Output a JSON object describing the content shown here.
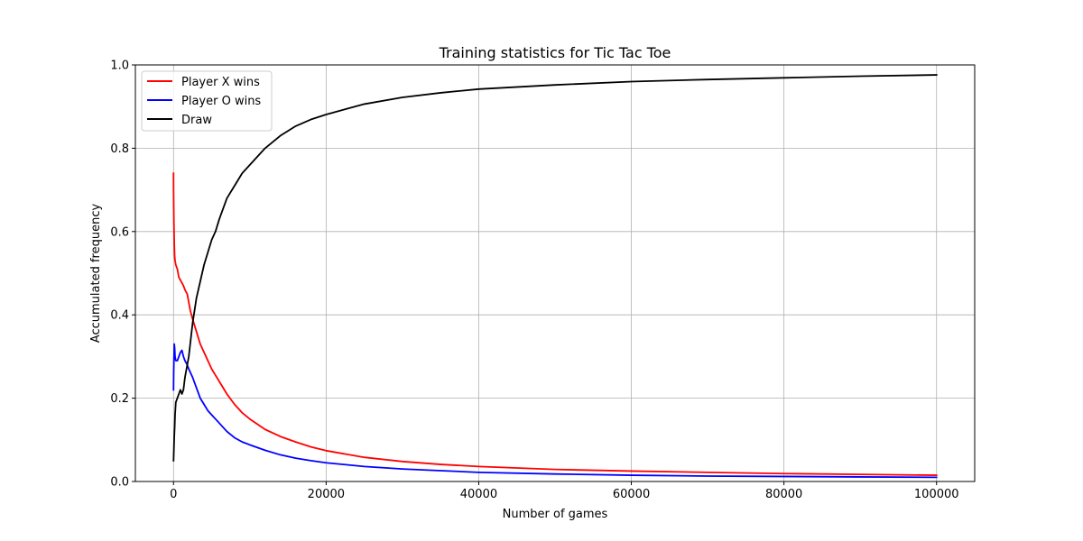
{
  "chart_data": {
    "type": "line",
    "title": "Training statistics for Tic Tac Toe",
    "xlabel": "Number of games",
    "ylabel": "Accumulated frequency",
    "xlim": [
      -5000,
      105000
    ],
    "ylim": [
      0,
      1
    ],
    "xticks": [
      0,
      20000,
      40000,
      60000,
      80000,
      100000
    ],
    "yticks": [
      0.0,
      0.2,
      0.4,
      0.6,
      0.8,
      1.0
    ],
    "xtick_labels": [
      "0",
      "20000",
      "40000",
      "60000",
      "80000",
      "100000"
    ],
    "ytick_labels": [
      "0.0",
      "0.2",
      "0.4",
      "0.6",
      "0.8",
      "1.0"
    ],
    "grid": true,
    "legend_position": "top-left",
    "series": [
      {
        "name": "Player X wins",
        "color": "#ff0000",
        "x": [
          0,
          10,
          50,
          100,
          150,
          200,
          300,
          500,
          700,
          1000,
          1300,
          1500,
          1800,
          2000,
          2200,
          2500,
          3000,
          3500,
          4000,
          4500,
          5000,
          5500,
          6000,
          7000,
          8000,
          9000,
          10000,
          12000,
          14000,
          16000,
          18000,
          20000,
          25000,
          30000,
          35000,
          40000,
          50000,
          60000,
          70000,
          80000,
          90000,
          100000
        ],
        "y": [
          0.74,
          0.69,
          0.62,
          0.57,
          0.54,
          0.53,
          0.52,
          0.51,
          0.49,
          0.48,
          0.47,
          0.46,
          0.45,
          0.43,
          0.41,
          0.39,
          0.36,
          0.33,
          0.31,
          0.29,
          0.27,
          0.255,
          0.24,
          0.21,
          0.185,
          0.165,
          0.15,
          0.125,
          0.108,
          0.095,
          0.083,
          0.074,
          0.058,
          0.048,
          0.041,
          0.036,
          0.029,
          0.025,
          0.022,
          0.019,
          0.017,
          0.015
        ]
      },
      {
        "name": "Player O wins",
        "color": "#0000ff",
        "x": [
          0,
          20,
          50,
          100,
          150,
          200,
          300,
          500,
          700,
          900,
          1100,
          1300,
          1500,
          1800,
          2000,
          2500,
          3000,
          3500,
          4000,
          4500,
          5000,
          5500,
          6000,
          7000,
          8000,
          9000,
          10000,
          12000,
          14000,
          16000,
          18000,
          20000,
          25000,
          30000,
          35000,
          40000,
          50000,
          60000,
          70000,
          80000,
          90000,
          100000
        ],
        "y": [
          0.22,
          0.26,
          0.29,
          0.33,
          0.32,
          0.3,
          0.29,
          0.29,
          0.3,
          0.31,
          0.315,
          0.3,
          0.29,
          0.28,
          0.27,
          0.25,
          0.225,
          0.2,
          0.185,
          0.17,
          0.16,
          0.15,
          0.14,
          0.12,
          0.105,
          0.095,
          0.088,
          0.075,
          0.064,
          0.056,
          0.05,
          0.045,
          0.036,
          0.03,
          0.026,
          0.022,
          0.018,
          0.015,
          0.013,
          0.012,
          0.011,
          0.01
        ]
      },
      {
        "name": "Draw",
        "color": "#000000",
        "x": [
          0,
          20,
          50,
          100,
          150,
          200,
          300,
          500,
          700,
          900,
          1100,
          1300,
          1500,
          1800,
          2000,
          2500,
          3000,
          3500,
          4000,
          4500,
          5000,
          5500,
          6000,
          7000,
          8000,
          9000,
          10000,
          12000,
          14000,
          16000,
          18000,
          20000,
          25000,
          30000,
          35000,
          40000,
          50000,
          60000,
          70000,
          80000,
          90000,
          100000
        ],
        "y": [
          0.05,
          0.06,
          0.08,
          0.11,
          0.13,
          0.16,
          0.19,
          0.2,
          0.21,
          0.22,
          0.21,
          0.22,
          0.25,
          0.28,
          0.3,
          0.38,
          0.44,
          0.48,
          0.52,
          0.55,
          0.58,
          0.6,
          0.63,
          0.68,
          0.71,
          0.74,
          0.76,
          0.8,
          0.83,
          0.853,
          0.869,
          0.881,
          0.906,
          0.922,
          0.933,
          0.942,
          0.952,
          0.96,
          0.965,
          0.969,
          0.973,
          0.976
        ]
      }
    ]
  }
}
